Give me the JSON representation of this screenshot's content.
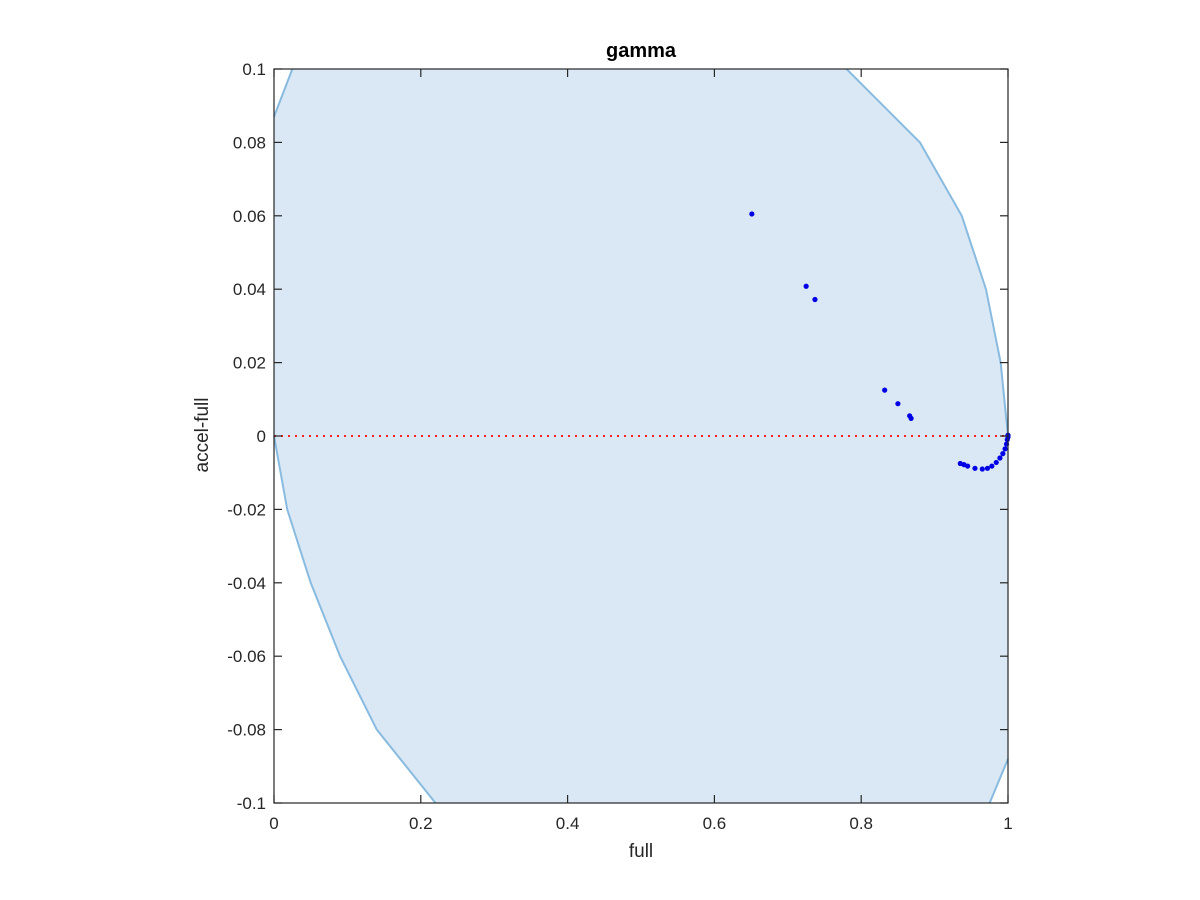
{
  "chart_data": {
    "type": "scatter",
    "title": "gamma",
    "xlabel": "full",
    "ylabel": "accel-full",
    "xlim": [
      0,
      1
    ],
    "ylim": [
      -0.1,
      0.1
    ],
    "xticks": [
      0,
      0.2,
      0.4,
      0.6,
      0.8,
      1
    ],
    "xtick_labels": [
      "0",
      "0.2",
      "0.4",
      "0.6",
      "0.8",
      "1"
    ],
    "yticks": [
      -0.1,
      -0.08,
      -0.06,
      -0.04,
      -0.02,
      0,
      0.02,
      0.04,
      0.06,
      0.08,
      0.1
    ],
    "ytick_labels": [
      "-0.1",
      "-0.08",
      "-0.06",
      "-0.04",
      "-0.02",
      "0",
      "0.02",
      "0.04",
      "0.06",
      "0.08",
      "0.1"
    ],
    "grid": false,
    "region": {
      "fill_color": "#d9e8f4",
      "edge_color": "#88bbdf",
      "left_boundary": [
        [
          0,
          0.087
        ],
        [
          0.025,
          0.1
        ],
        [
          0,
          0
        ],
        [
          0.018,
          -0.02
        ],
        [
          0.05,
          -0.04
        ],
        [
          0.09,
          -0.06
        ],
        [
          0.14,
          -0.08
        ],
        [
          0.22,
          -0.1
        ]
      ],
      "right_boundary": [
        [
          0.78,
          0.1
        ],
        [
          0.88,
          0.08
        ],
        [
          0.937,
          0.06
        ],
        [
          0.97,
          0.04
        ],
        [
          0.99,
          0.02
        ],
        [
          1,
          0
        ],
        [
          0.975,
          -0.1
        ],
        [
          1,
          -0.088
        ]
      ]
    },
    "reference_line": {
      "y": 0,
      "style": "dotted",
      "color": "#ff2020"
    },
    "series": [
      {
        "color": "#0000e6",
        "points": [
          [
            0.651,
            0.0605
          ],
          [
            0.725,
            0.0408
          ],
          [
            0.737,
            0.0372
          ],
          [
            0.832,
            0.0125
          ],
          [
            0.85,
            0.0088
          ],
          [
            0.866,
            0.0055
          ],
          [
            0.868,
            0.0048
          ],
          [
            0.935,
            -0.0075
          ],
          [
            0.94,
            -0.0078
          ],
          [
            0.945,
            -0.0082
          ],
          [
            0.955,
            -0.0088
          ],
          [
            0.965,
            -0.009
          ],
          [
            0.972,
            -0.0088
          ],
          [
            0.978,
            -0.0082
          ],
          [
            0.984,
            -0.0072
          ],
          [
            0.989,
            -0.006
          ],
          [
            0.993,
            -0.0048
          ],
          [
            0.996,
            -0.0035
          ],
          [
            0.998,
            -0.0022
          ],
          [
            0.999,
            -0.001
          ],
          [
            1.0,
            -0.0003
          ],
          [
            1.0,
            0.0002
          ]
        ]
      }
    ]
  }
}
